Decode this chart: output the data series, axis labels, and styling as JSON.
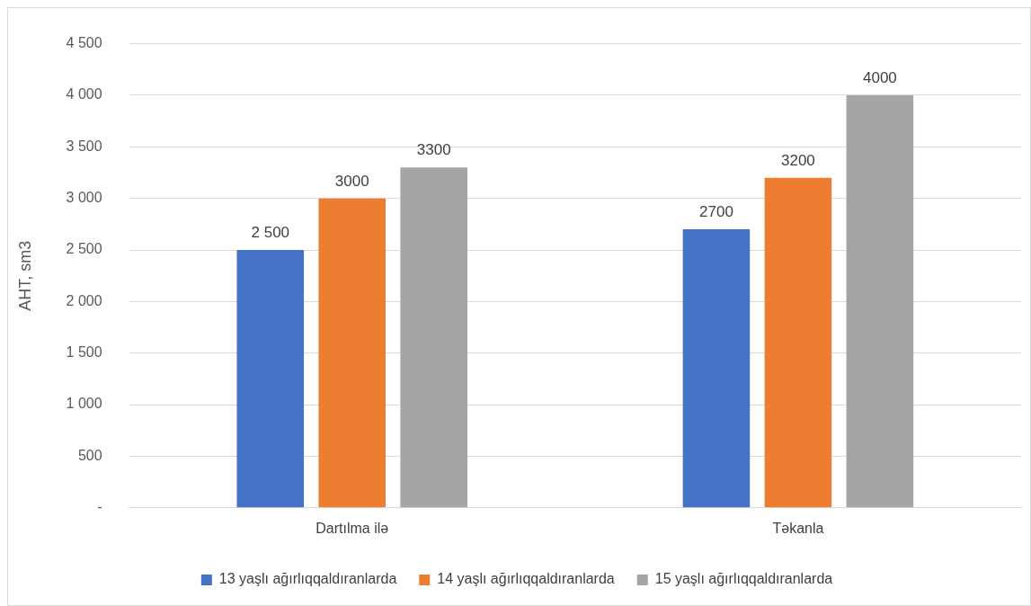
{
  "chart_data": {
    "type": "bar",
    "ylabel": "AHT, sm3",
    "categories": [
      "Dartılma ilə",
      "Təkanla"
    ],
    "series": [
      {
        "name": "13 yaşlı ağırlıqqaldıranlarda",
        "color": "#4472c4",
        "values": [
          2500,
          2700
        ],
        "value_labels": [
          "2 500",
          "2700"
        ]
      },
      {
        "name": "14 yaşlı ağırlıqqaldıranlarda",
        "color": "#ed7d31",
        "values": [
          3000,
          3200
        ],
        "value_labels": [
          "3000",
          "3200"
        ]
      },
      {
        "name": "15 yaşlı ağırlıqqaldıranlarda",
        "color": "#a5a5a5",
        "values": [
          3300,
          4000
        ],
        "value_labels": [
          "3300",
          "4000"
        ]
      }
    ],
    "ylim": [
      0,
      4500
    ],
    "yticks": [
      {
        "value": 0,
        "label": "-"
      },
      {
        "value": 500,
        "label": "500"
      },
      {
        "value": 1000,
        "label": "1 000"
      },
      {
        "value": 1500,
        "label": "1 500"
      },
      {
        "value": 2000,
        "label": "2 000"
      },
      {
        "value": 2500,
        "label": "2 500"
      },
      {
        "value": 3000,
        "label": "3 000"
      },
      {
        "value": 3500,
        "label": "3 500"
      },
      {
        "value": 4000,
        "label": "4 000"
      },
      {
        "value": 4500,
        "label": "4 500"
      }
    ],
    "grid": "y",
    "legend": "bottom"
  }
}
